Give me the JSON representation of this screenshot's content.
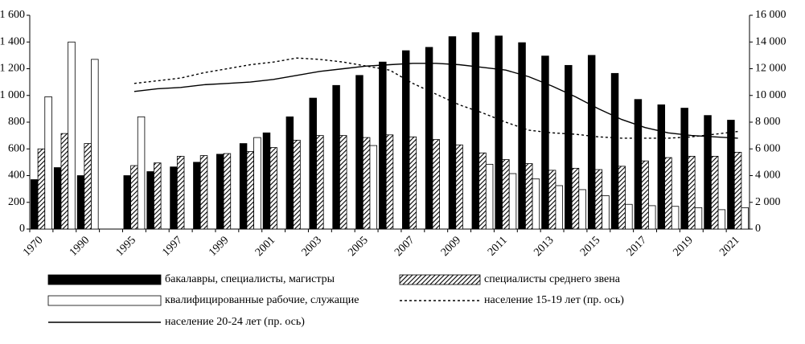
{
  "chart_data": {
    "type": "bar",
    "categories": [
      "1970",
      null,
      "1990",
      null,
      "1995",
      null,
      "1997",
      null,
      "1999",
      null,
      "2001",
      null,
      "2003",
      null,
      "2005",
      null,
      "2007",
      null,
      "2009",
      null,
      "2011",
      null,
      "2013",
      null,
      "2015",
      null,
      "2017",
      null,
      "2019",
      null,
      "2021"
    ],
    "series": [
      {
        "name": "бакалавры, специалисты, магистры",
        "color": "#000000",
        "fill": "solid",
        "values": [
          370,
          460,
          400,
          null,
          400,
          430,
          465,
          500,
          560,
          640,
          720,
          840,
          980,
          1075,
          1150,
          1250,
          1335,
          1360,
          1440,
          1470,
          1445,
          1395,
          1295,
          1225,
          1300,
          1165,
          970,
          930,
          905,
          850,
          815
        ]
      },
      {
        "name": "специалисты среднего звена",
        "color": "#555555",
        "fill": "hatch",
        "values": [
          600,
          715,
          640,
          null,
          475,
          495,
          545,
          550,
          565,
          580,
          610,
          665,
          700,
          700,
          685,
          705,
          690,
          670,
          630,
          570,
          520,
          490,
          440,
          455,
          445,
          470,
          510,
          535,
          545,
          545,
          575
        ]
      },
      {
        "name": "квалифицированные рабочие, служащие",
        "color": "#ffffff",
        "fill": "solid",
        "values": [
          990,
          1400,
          1270,
          null,
          840,
          null,
          null,
          null,
          null,
          685,
          null,
          null,
          null,
          null,
          625,
          null,
          null,
          null,
          null,
          485,
          415,
          375,
          325,
          295,
          250,
          185,
          175,
          170,
          160,
          145,
          160
        ]
      },
      {
        "name": "население 15-19 лет (пр. ось)",
        "color": "#000000",
        "type": "line",
        "axis": "y2",
        "style": "dotted",
        "values": [
          null,
          null,
          null,
          null,
          10900,
          11100,
          11300,
          11700,
          12000,
          12300,
          12500,
          12800,
          12700,
          12500,
          12200,
          11900,
          10900,
          10100,
          9300,
          8700,
          8000,
          7400,
          7200,
          7100,
          6900,
          6800,
          6800,
          6800,
          6900,
          7100,
          7300
        ]
      },
      {
        "name": "население 20-24 лет (пр. ось)",
        "color": "#000000",
        "type": "line",
        "axis": "y2",
        "style": "solid",
        "values": [
          null,
          null,
          null,
          null,
          10300,
          10500,
          10600,
          10800,
          10900,
          11000,
          11200,
          11500,
          11800,
          12000,
          12200,
          12300,
          12400,
          12400,
          12300,
          12100,
          11900,
          11400,
          10700,
          9900,
          9000,
          8200,
          7600,
          7200,
          7000,
          6900,
          6800
        ]
      }
    ],
    "ylim": [
      0,
      1600
    ],
    "yticks": [
      0,
      200,
      400,
      600,
      800,
      {
        "value": 1000,
        "label": "1 000"
      },
      {
        "value": 1200,
        "label": "1 200"
      },
      {
        "value": 1400,
        "label": "1 400"
      },
      {
        "value": 1600,
        "label": "1 600"
      }
    ],
    "y2lim": [
      0,
      16000
    ],
    "y2ticks": [
      0,
      {
        "value": 2000,
        "label": "2 000"
      },
      {
        "value": 4000,
        "label": "4 000"
      },
      {
        "value": 6000,
        "label": "6 000"
      },
      {
        "value": 8000,
        "label": "8 000"
      },
      {
        "value": 10000,
        "label": "10 000"
      },
      {
        "value": 12000,
        "label": "12 000"
      },
      {
        "value": 14000,
        "label": "14 000"
      },
      {
        "value": 16000,
        "label": "16 000"
      }
    ]
  }
}
